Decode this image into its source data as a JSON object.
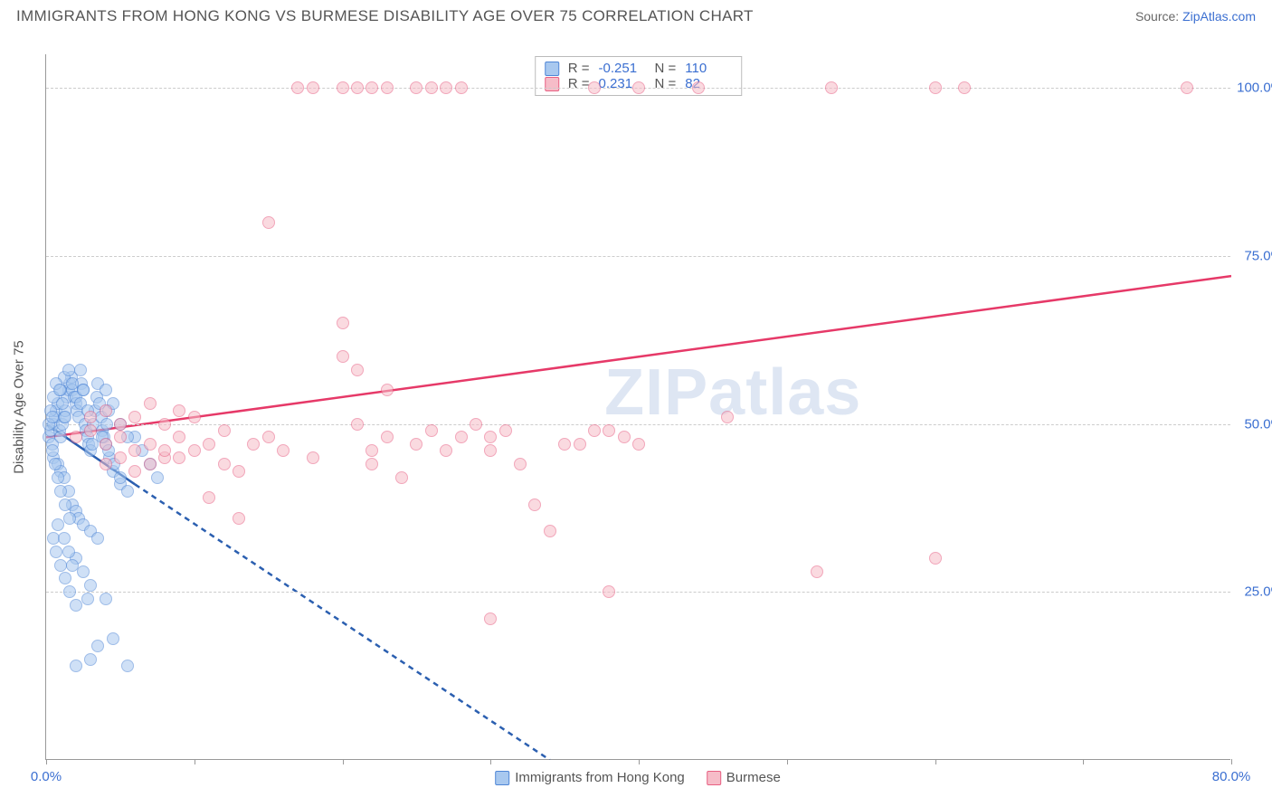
{
  "header": {
    "title": "IMMIGRANTS FROM HONG KONG VS BURMESE DISABILITY AGE OVER 75 CORRELATION CHART",
    "source_label": "Source:",
    "source_link": "ZipAtlas.com"
  },
  "chart": {
    "type": "scatter",
    "y_axis_label": "Disability Age Over 75",
    "xlim": [
      0,
      80
    ],
    "ylim": [
      0,
      105
    ],
    "x_ticks": [
      0,
      10,
      20,
      30,
      40,
      50,
      60,
      70,
      80
    ],
    "x_tick_labels": {
      "0": "0.0%",
      "80": "80.0%"
    },
    "y_ticks": [
      25,
      50,
      75,
      100
    ],
    "y_tick_labels": {
      "25": "25.0%",
      "50": "50.0%",
      "75": "75.0%",
      "100": "100.0%"
    },
    "background_color": "#ffffff",
    "grid_color": "#cccccc",
    "axis_color": "#999999",
    "tick_label_color": "#3b6fd1",
    "marker_radius": 7,
    "marker_stroke_width": 1.2,
    "watermark": "ZIPatlas",
    "series": [
      {
        "name": "Immigrants from Hong Kong",
        "fill": "#a8c8ef",
        "stroke": "#4f86d6",
        "fill_opacity": 0.55,
        "trend_color": "#2b5fb0",
        "trend_solid": [
          [
            0,
            50
          ],
          [
            6,
            41
          ]
        ],
        "trend_dashed": [
          [
            6,
            41
          ],
          [
            34,
            0
          ]
        ],
        "stats": {
          "R": "-0.251",
          "N": "110"
        },
        "points": [
          [
            0.2,
            48
          ],
          [
            0.3,
            49
          ],
          [
            0.4,
            47
          ],
          [
            0.5,
            50
          ],
          [
            0.6,
            51
          ],
          [
            0.7,
            52
          ],
          [
            0.8,
            53
          ],
          [
            0.9,
            49
          ],
          [
            1.0,
            48
          ],
          [
            1.1,
            50
          ],
          [
            1.2,
            51
          ],
          [
            1.3,
            52
          ],
          [
            1.4,
            54
          ],
          [
            1.5,
            55
          ],
          [
            1.6,
            56
          ],
          [
            1.7,
            57
          ],
          [
            1.8,
            55
          ],
          [
            1.9,
            54
          ],
          [
            2.0,
            53
          ],
          [
            2.1,
            52
          ],
          [
            2.2,
            51
          ],
          [
            2.3,
            58
          ],
          [
            2.4,
            56
          ],
          [
            2.5,
            55
          ],
          [
            2.6,
            50
          ],
          [
            2.7,
            49
          ],
          [
            2.8,
            48
          ],
          [
            2.9,
            47
          ],
          [
            3.0,
            46
          ],
          [
            3.1,
            47
          ],
          [
            3.2,
            50
          ],
          [
            3.3,
            52
          ],
          [
            3.4,
            54
          ],
          [
            3.5,
            56
          ],
          [
            3.6,
            53
          ],
          [
            3.7,
            51
          ],
          [
            3.8,
            49
          ],
          [
            3.9,
            48
          ],
          [
            4.0,
            47
          ],
          [
            4.1,
            50
          ],
          [
            4.2,
            52
          ],
          [
            4.3,
            45
          ],
          [
            4.5,
            43
          ],
          [
            5.0,
            41
          ],
          [
            5.5,
            40
          ],
          [
            0.5,
            45
          ],
          [
            0.8,
            44
          ],
          [
            1.0,
            43
          ],
          [
            1.2,
            42
          ],
          [
            1.5,
            40
          ],
          [
            1.8,
            38
          ],
          [
            2.0,
            37
          ],
          [
            2.2,
            36
          ],
          [
            2.5,
            35
          ],
          [
            3.0,
            34
          ],
          [
            3.5,
            33
          ],
          [
            1.0,
            55
          ],
          [
            1.2,
            57
          ],
          [
            1.5,
            58
          ],
          [
            1.8,
            56
          ],
          [
            2.0,
            54
          ],
          [
            2.3,
            53
          ],
          [
            2.5,
            55
          ],
          [
            2.8,
            52
          ],
          [
            0.3,
            52
          ],
          [
            0.5,
            54
          ],
          [
            0.7,
            56
          ],
          [
            0.9,
            55
          ],
          [
            1.1,
            53
          ],
          [
            1.3,
            51
          ],
          [
            6.0,
            48
          ],
          [
            6.5,
            46
          ],
          [
            7.0,
            44
          ],
          [
            7.5,
            42
          ],
          [
            4.0,
            55
          ],
          [
            4.5,
            53
          ],
          [
            5.0,
            50
          ],
          [
            5.5,
            48
          ],
          [
            0.4,
            46
          ],
          [
            0.6,
            44
          ],
          [
            0.8,
            42
          ],
          [
            1.0,
            40
          ],
          [
            1.3,
            38
          ],
          [
            1.6,
            36
          ],
          [
            2.0,
            30
          ],
          [
            2.5,
            28
          ],
          [
            3.0,
            26
          ],
          [
            0.5,
            33
          ],
          [
            0.7,
            31
          ],
          [
            1.0,
            29
          ],
          [
            1.3,
            27
          ],
          [
            1.6,
            25
          ],
          [
            2.0,
            23
          ],
          [
            2.8,
            24
          ],
          [
            4.0,
            24
          ],
          [
            3.5,
            17
          ],
          [
            3.0,
            15
          ],
          [
            2.0,
            14
          ],
          [
            5.5,
            14
          ],
          [
            4.5,
            18
          ],
          [
            0.8,
            35
          ],
          [
            1.2,
            33
          ],
          [
            1.5,
            31
          ],
          [
            1.8,
            29
          ],
          [
            3.8,
            48
          ],
          [
            4.2,
            46
          ],
          [
            4.6,
            44
          ],
          [
            5.0,
            42
          ],
          [
            0.2,
            50
          ],
          [
            0.4,
            51
          ]
        ]
      },
      {
        "name": "Burmese",
        "fill": "#f6bcc8",
        "stroke": "#e85f82",
        "fill_opacity": 0.55,
        "trend_color": "#e63968",
        "trend_solid": [
          [
            0,
            48
          ],
          [
            80,
            72
          ]
        ],
        "trend_dashed": null,
        "stats": {
          "R": "0.231",
          "N": "82"
        },
        "points": [
          [
            2,
            48
          ],
          [
            3,
            49
          ],
          [
            4,
            47
          ],
          [
            5,
            48
          ],
          [
            6,
            46
          ],
          [
            7,
            47
          ],
          [
            8,
            45
          ],
          [
            9,
            48
          ],
          [
            10,
            46
          ],
          [
            11,
            47
          ],
          [
            12,
            49
          ],
          [
            3,
            51
          ],
          [
            4,
            52
          ],
          [
            5,
            50
          ],
          [
            6,
            51
          ],
          [
            7,
            53
          ],
          [
            8,
            50
          ],
          [
            9,
            52
          ],
          [
            10,
            51
          ],
          [
            4,
            44
          ],
          [
            5,
            45
          ],
          [
            6,
            43
          ],
          [
            7,
            44
          ],
          [
            8,
            46
          ],
          [
            9,
            45
          ],
          [
            12,
            44
          ],
          [
            13,
            43
          ],
          [
            14,
            47
          ],
          [
            15,
            48
          ],
          [
            16,
            46
          ],
          [
            18,
            45
          ],
          [
            15,
            80
          ],
          [
            20,
            65
          ],
          [
            20,
            60
          ],
          [
            21,
            58
          ],
          [
            21,
            50
          ],
          [
            22,
            46
          ],
          [
            22,
            44
          ],
          [
            23,
            48
          ],
          [
            23,
            55
          ],
          [
            24,
            42
          ],
          [
            25,
            47
          ],
          [
            26,
            49
          ],
          [
            27,
            46
          ],
          [
            28,
            48
          ],
          [
            29,
            50
          ],
          [
            30,
            46
          ],
          [
            30,
            48
          ],
          [
            31,
            49
          ],
          [
            32,
            44
          ],
          [
            33,
            38
          ],
          [
            34,
            34
          ],
          [
            35,
            47
          ],
          [
            36,
            47
          ],
          [
            37,
            49
          ],
          [
            38,
            49
          ],
          [
            38,
            25
          ],
          [
            39,
            48
          ],
          [
            40,
            47
          ],
          [
            30,
            21
          ],
          [
            13,
            36
          ],
          [
            11,
            39
          ],
          [
            17,
            100
          ],
          [
            18,
            100
          ],
          [
            20,
            100
          ],
          [
            22,
            100
          ],
          [
            25,
            100
          ],
          [
            26,
            100
          ],
          [
            28,
            100
          ],
          [
            37,
            100
          ],
          [
            40,
            100
          ],
          [
            44,
            100
          ],
          [
            60,
            100
          ],
          [
            62,
            100
          ],
          [
            53,
            100
          ],
          [
            46,
            51
          ],
          [
            52,
            28
          ],
          [
            60,
            30
          ],
          [
            77,
            100
          ],
          [
            21,
            100
          ],
          [
            23,
            100
          ],
          [
            27,
            100
          ]
        ]
      }
    ]
  }
}
